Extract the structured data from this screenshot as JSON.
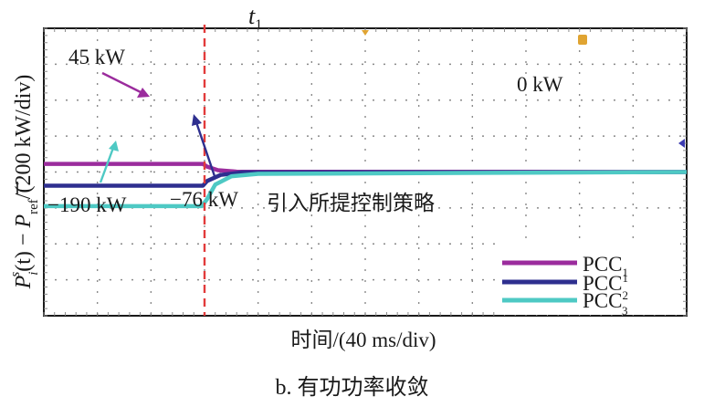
{
  "chart_data": {
    "type": "line",
    "ylabel_parts": {
      "p": "P",
      "i": "i",
      "s": "s",
      "t1": "(t) − ",
      "pbar": "P",
      "ref": "ref",
      "tail": "/(200 kW/div)"
    },
    "xlabel": "时间/(40 ms/div)",
    "event": {
      "label": "t",
      "label_sub": "1",
      "t": 3
    },
    "xlim": [
      0,
      12
    ],
    "ylim": [
      -4,
      4
    ],
    "x_divisions": 12,
    "y_divisions": 8,
    "grid": true,
    "series": [
      {
        "name_base": "PCC",
        "name_sup": "",
        "name_sub": "1",
        "color": "#9b2c9d",
        "x": [
          0,
          2.97,
          3.05,
          3.25,
          3.6,
          12
        ],
        "values": [
          0.225,
          0.225,
          0.15,
          0.05,
          0.01,
          0.0
        ]
      },
      {
        "name_base": "PCC",
        "name_sup": "1",
        "name_sub": "",
        "color": "#2e2f8f",
        "x": [
          0,
          2.97,
          3.05,
          3.3,
          3.7,
          12
        ],
        "values": [
          -0.38,
          -0.38,
          -0.25,
          -0.08,
          -0.01,
          0.0
        ]
      },
      {
        "name_base": "PCC",
        "name_sup": "2",
        "name_sub": "3",
        "color": "#4ec9c4",
        "x": [
          0,
          2.95,
          3.05,
          3.2,
          3.5,
          4.0,
          12
        ],
        "values": [
          -0.95,
          -0.95,
          -0.75,
          -0.35,
          -0.12,
          -0.05,
          0.0
        ]
      }
    ],
    "annotations": [
      {
        "text": "45 kW"
      },
      {
        "text": "0 kW"
      },
      {
        "text": "−190 kW"
      },
      {
        "text": "−76 kW"
      },
      {
        "text": "引入所提控制策略"
      }
    ]
  },
  "caption": "b. 有功功率收敛",
  "colors": {
    "event_line": "#e23b3b",
    "grid": "#8a8a8a",
    "frame": "#1a1a1a",
    "marker": "#e0a432"
  }
}
